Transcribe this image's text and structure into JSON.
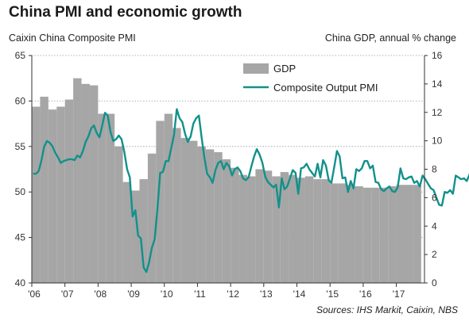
{
  "title": "China PMI and economic growth",
  "source": "Sources: IHS Markit, Caixin, NBS",
  "chart_data": {
    "type": "bar+line",
    "y_left_label": "Caixin China Composite PMI",
    "y_right_label": "China GDP, annual % change",
    "y_left_range": [
      40,
      65
    ],
    "y_left_ticks": [
      40,
      45,
      50,
      55,
      60,
      65
    ],
    "y_right_range": [
      0,
      16
    ],
    "y_right_ticks": [
      0,
      2,
      4,
      6,
      8,
      10,
      12,
      14,
      16
    ],
    "x_range": [
      2006.0,
      2017.85
    ],
    "x_ticks": [
      {
        "value": 2006,
        "label": "'06"
      },
      {
        "value": 2007,
        "label": "'07"
      },
      {
        "value": 2008,
        "label": "'08"
      },
      {
        "value": 2009,
        "label": "'09"
      },
      {
        "value": 2010,
        "label": "'10"
      },
      {
        "value": 2011,
        "label": "'11"
      },
      {
        "value": 2012,
        "label": "'12"
      },
      {
        "value": 2013,
        "label": "'13"
      },
      {
        "value": 2014,
        "label": "'14"
      },
      {
        "value": 2015,
        "label": "'15"
      },
      {
        "value": 2016,
        "label": "'16"
      },
      {
        "value": 2017,
        "label": "'17"
      }
    ],
    "grid": "horizontal dotted",
    "legend_placement": "top-center",
    "colors": {
      "gdp": "#a6a6a6",
      "pmi": "#12918a"
    },
    "series": [
      {
        "name": "GDP",
        "axis": "right",
        "kind": "bar",
        "quarter_start": 2006.0,
        "values": [
          12.4,
          13.1,
          12.2,
          12.4,
          12.9,
          14.4,
          14.0,
          13.9,
          11.9,
          11.9,
          9.6,
          7.1,
          6.5,
          7.3,
          9.1,
          11.4,
          11.9,
          10.9,
          10.2,
          10.0,
          9.6,
          9.4,
          9.2,
          8.7,
          8.1,
          7.6,
          7.5,
          8.0,
          7.9,
          7.5,
          7.8,
          7.6,
          7.4,
          7.5,
          7.3,
          7.3,
          7.0,
          7.0,
          6.9,
          6.8,
          6.7,
          6.7,
          6.7,
          6.8,
          6.9,
          6.9,
          6.9
        ]
      },
      {
        "name": "Composite Output PMI",
        "axis": "left",
        "kind": "line",
        "monthly_start": 2006.0,
        "values": [
          52.0,
          52.0,
          52.3,
          53.5,
          55.0,
          55.6,
          55.4,
          55.0,
          54.3,
          53.8,
          53.2,
          53.4,
          53.5,
          53.6,
          53.6,
          53.5,
          54.0,
          53.8,
          54.5,
          55.5,
          56.1,
          57.0,
          57.3,
          56.5,
          56.0,
          57.3,
          58.7,
          58.4,
          56.6,
          55.6,
          55.8,
          56.2,
          55.8,
          54.4,
          52.5,
          51.6,
          47.3,
          48.0,
          45.2,
          44.9,
          41.7,
          41.2,
          42.3,
          43.9,
          44.8,
          48.2,
          52.1,
          52.2,
          53.4,
          53.4,
          54.8,
          56.3,
          59.1,
          58.1,
          57.7,
          56.4,
          55.5,
          56.1,
          57.5,
          58.1,
          58.4,
          56.0,
          53.8,
          52.0,
          51.6,
          51.0,
          52.4,
          53.2,
          53.4,
          52.5,
          53.2,
          52.8,
          51.8,
          52.5,
          52.7,
          52.3,
          51.5,
          51.3,
          51.6,
          52.8,
          53.9,
          54.7,
          54.1,
          53.2,
          51.7,
          51.1,
          50.8,
          50.5,
          50.8,
          48.3,
          51.5,
          50.3,
          50.6,
          51.5,
          52.4,
          52.1,
          49.8,
          52.6,
          52.7,
          53.1,
          52.5,
          52.1,
          51.7,
          53.1,
          51.6,
          53.5,
          52.9,
          51.3,
          51.0,
          52.7,
          54.5,
          53.9,
          51.5,
          51.6,
          50.0,
          51.2,
          50.4,
          52.5,
          52.3,
          52.6,
          53.4,
          53.4,
          52.6,
          52.9,
          51.1,
          51.0,
          50.3,
          50.1,
          50.4,
          50.6,
          50.1,
          50.0,
          50.5,
          52.6,
          51.5,
          51.4,
          51.6,
          51.7,
          51.0,
          51.2,
          50.6,
          51.8,
          51.4,
          50.9,
          50.4,
          50.2,
          49.4,
          48.6,
          48.5,
          50.0,
          49.9,
          50.2,
          49.8,
          51.8,
          51.6,
          51.4,
          51.5,
          51.2,
          51.9,
          53.1,
          53.6,
          53.8,
          53.9,
          53.5,
          54.5,
          53.5,
          52.6,
          52.0,
          52.0,
          51.7
        ]
      }
    ]
  }
}
